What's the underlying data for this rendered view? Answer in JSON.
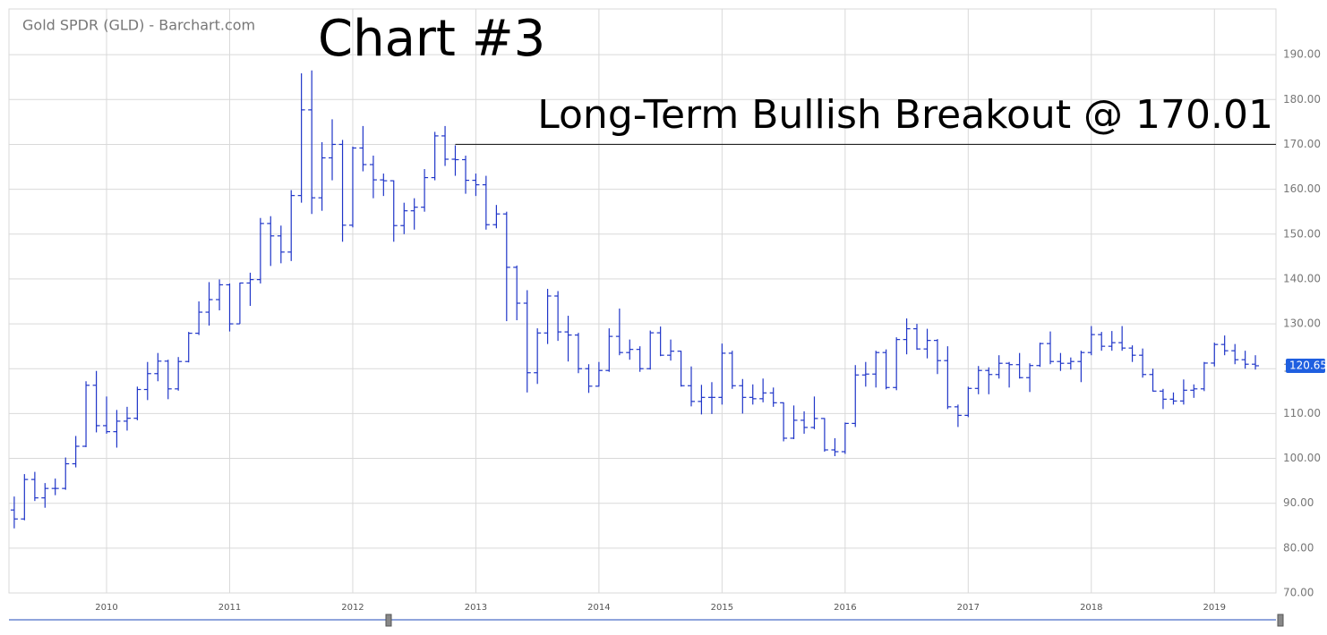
{
  "chart_data": {
    "type": "ohlc",
    "source_title": "Gold SPDR (GLD) - Barchart.com",
    "title": "Chart #3",
    "annotation": "Long-Term Bullish Breakout @ 170.01",
    "breakout_level": 170.01,
    "breakout_start": 2012.833,
    "color": "#1f35c8",
    "last_price_color": "#1f5fe0",
    "grid": true,
    "x": [
      2009.25,
      2009.333,
      2009.417,
      2009.5,
      2009.583,
      2009.667,
      2009.75,
      2009.833,
      2009.917,
      2010,
      2010.083,
      2010.167,
      2010.25,
      2010.333,
      2010.417,
      2010.5,
      2010.583,
      2010.667,
      2010.75,
      2010.833,
      2010.917,
      2011,
      2011.083,
      2011.167,
      2011.25,
      2011.333,
      2011.417,
      2011.5,
      2011.583,
      2011.667,
      2011.75,
      2011.833,
      2011.917,
      2012,
      2012.083,
      2012.167,
      2012.25,
      2012.333,
      2012.417,
      2012.5,
      2012.583,
      2012.667,
      2012.75,
      2012.833,
      2012.917,
      2013,
      2013.083,
      2013.167,
      2013.25,
      2013.333,
      2013.417,
      2013.5,
      2013.583,
      2013.667,
      2013.75,
      2013.833,
      2013.917,
      2014,
      2014.083,
      2014.167,
      2014.25,
      2014.333,
      2014.417,
      2014.5,
      2014.583,
      2014.667,
      2014.75,
      2014.833,
      2014.917,
      2015,
      2015.083,
      2015.167,
      2015.25,
      2015.333,
      2015.417,
      2015.5,
      2015.583,
      2015.667,
      2015.75,
      2015.833,
      2015.917,
      2016,
      2016.083,
      2016.167,
      2016.25,
      2016.333,
      2016.417,
      2016.5,
      2016.583,
      2016.667,
      2016.75,
      2016.833,
      2016.917,
      2017,
      2017.083,
      2017.167,
      2017.25,
      2017.333,
      2017.417,
      2017.5,
      2017.583,
      2017.667,
      2017.75,
      2017.833,
      2017.917,
      2018,
      2018.083,
      2018.167,
      2018.25,
      2018.333,
      2018.417,
      2018.5,
      2018.583,
      2018.667,
      2018.75,
      2018.833,
      2018.917,
      2019,
      2019.083,
      2019.167,
      2019.25,
      2019.333
    ],
    "open": [
      88.5,
      86.5,
      95.3,
      91.2,
      93.3,
      93.3,
      98.8,
      102.7,
      116.3,
      107.3,
      105.96,
      108.3,
      108.95,
      115.36,
      118.9,
      121.68,
      115.5,
      121.6,
      127.9,
      132.6,
      135.4,
      138.7,
      130.0,
      139.1,
      139.86,
      152.37,
      149.6,
      146.0,
      158.6,
      177.7,
      158.1,
      167.0,
      170.0,
      151.99,
      169.2,
      165.5,
      162.1,
      161.9,
      151.9,
      155.2,
      156.0,
      162.6,
      171.9,
      166.7,
      166.6,
      162.0,
      161.0,
      152.1,
      154.5,
      142.6,
      134.6,
      119.1,
      127.96,
      136.2,
      128.2,
      127.5,
      120.0,
      116.1,
      119.6,
      127.2,
      123.6,
      124.3,
      120.0,
      128.0,
      123.0,
      123.9,
      116.2,
      112.7,
      113.6,
      113.6,
      123.45,
      116.2,
      113.6,
      113.3,
      114.6,
      112.4,
      104.5,
      108.5,
      106.9,
      108.9,
      101.9,
      101.5,
      107.8,
      118.6,
      118.8,
      123.6,
      115.8,
      126.5,
      128.9,
      124.4,
      126.3,
      121.8,
      111.5,
      109.6,
      115.6,
      119.6,
      118.7,
      121.2,
      120.9,
      118.0,
      120.7,
      125.6,
      121.6,
      121.2,
      121.6,
      123.6,
      127.6,
      125.0,
      125.8,
      124.6,
      123.0,
      118.7,
      115.0,
      113.2,
      112.8,
      115.2,
      115.5,
      121.25,
      125.4,
      124.0,
      122.0,
      121.0
    ],
    "high": [
      91.5,
      96.5,
      97.0,
      94.5,
      95.5,
      100.2,
      105.0,
      117.2,
      119.5,
      113.8,
      110.8,
      111.5,
      116.0,
      121.5,
      123.5,
      122.0,
      122.6,
      128.2,
      135.0,
      139.3,
      139.9,
      139.0,
      139.2,
      141.4,
      153.6,
      154.0,
      151.9,
      159.8,
      185.85,
      186.5,
      170.5,
      175.6,
      171.0,
      169.5,
      174.1,
      167.5,
      163.5,
      162.0,
      157.0,
      158.0,
      164.5,
      172.8,
      174.1,
      169.8,
      167.5,
      163.5,
      163.0,
      156.5,
      155.0,
      143.0,
      137.5,
      129.0,
      137.8,
      137.3,
      131.8,
      128.0,
      121.0,
      121.5,
      129.0,
      133.4,
      126.5,
      125.0,
      128.5,
      129.4,
      126.5,
      124.0,
      120.5,
      116.4,
      117.0,
      125.6,
      124.0,
      117.7,
      116.5,
      117.8,
      115.8,
      112.5,
      111.8,
      110.5,
      113.8,
      109.0,
      104.5,
      108.0,
      120.8,
      121.5,
      124.0,
      124.3,
      127.0,
      131.2,
      130.0,
      128.9,
      126.6,
      125.0,
      112.0,
      116.0,
      120.6,
      120.3,
      123.0,
      121.5,
      123.5,
      121.2,
      125.8,
      128.3,
      123.5,
      122.5,
      124.0,
      129.5,
      128.2,
      128.4,
      129.5,
      125.2,
      124.5,
      120.0,
      115.5,
      114.7,
      117.6,
      116.5,
      121.5,
      125.8,
      127.4,
      125.5,
      124.0,
      123.0
    ],
    "low": [
      84.4,
      86.2,
      90.5,
      89.0,
      91.8,
      93.0,
      98.0,
      102.5,
      105.8,
      105.5,
      102.4,
      106.2,
      108.5,
      113.0,
      117.2,
      113.2,
      115.1,
      121.4,
      127.5,
      129.6,
      133.0,
      128.3,
      130.0,
      134.0,
      139.0,
      142.9,
      143.5,
      144.0,
      157.0,
      154.5,
      155.2,
      162.0,
      148.3,
      151.5,
      164.0,
      158.0,
      158.5,
      148.3,
      150.0,
      151.0,
      155.0,
      162.0,
      165.2,
      163.0,
      159.0,
      158.5,
      151.0,
      151.3,
      130.6,
      130.8,
      114.7,
      116.6,
      125.5,
      126.2,
      121.6,
      119.0,
      114.6,
      116.0,
      119.3,
      123.0,
      122.0,
      119.3,
      119.8,
      122.8,
      121.8,
      116.0,
      111.6,
      109.8,
      109.9,
      112.0,
      115.5,
      110.0,
      112.0,
      112.5,
      111.5,
      103.8,
      104.3,
      105.5,
      106.5,
      101.5,
      100.5,
      101.0,
      107.0,
      116.0,
      115.8,
      115.4,
      115.2,
      123.2,
      124.2,
      122.3,
      118.8,
      111.0,
      107.0,
      109.2,
      114.3,
      114.3,
      117.8,
      115.8,
      117.8,
      114.8,
      120.4,
      121.0,
      119.5,
      119.8,
      117.0,
      123.0,
      124.0,
      124.0,
      124.0,
      121.5,
      118.0,
      114.9,
      111.0,
      112.0,
      112.0,
      113.5,
      115.0,
      120.5,
      123.0,
      121.0,
      120.0,
      119.8
    ],
    "close": [
      86.5,
      95.3,
      91.2,
      93.3,
      93.3,
      98.8,
      102.7,
      116.3,
      107.3,
      105.96,
      108.3,
      108.95,
      115.36,
      118.9,
      121.68,
      115.5,
      121.6,
      127.9,
      132.6,
      135.4,
      138.7,
      130.0,
      139.1,
      139.86,
      152.37,
      149.6,
      146.0,
      158.6,
      177.7,
      158.1,
      167.0,
      170.0,
      151.99,
      169.2,
      165.5,
      162.1,
      161.9,
      151.9,
      155.2,
      156.0,
      162.6,
      171.9,
      166.7,
      166.6,
      162.0,
      161.0,
      152.1,
      154.5,
      142.6,
      134.6,
      119.1,
      127.96,
      136.2,
      128.2,
      127.5,
      120.0,
      116.1,
      119.6,
      127.2,
      123.6,
      124.3,
      120.0,
      128.0,
      123.0,
      123.9,
      116.2,
      112.7,
      113.6,
      113.6,
      123.45,
      116.2,
      113.6,
      113.3,
      114.6,
      112.4,
      104.5,
      108.5,
      106.9,
      108.9,
      101.9,
      101.5,
      107.8,
      118.6,
      118.8,
      123.6,
      115.8,
      126.5,
      128.9,
      124.4,
      126.3,
      121.8,
      111.5,
      109.6,
      115.6,
      119.6,
      118.7,
      121.2,
      120.9,
      118.0,
      120.7,
      125.6,
      121.6,
      121.2,
      121.6,
      123.6,
      127.6,
      125.0,
      125.8,
      124.6,
      123.0,
      118.7,
      115.0,
      113.2,
      112.8,
      115.2,
      115.5,
      121.25,
      125.4,
      124.0,
      122.0,
      121.0,
      120.65
    ],
    "xlim": [
      2009.207,
      2019.5
    ],
    "xticks": [
      2010,
      2011,
      2012,
      2013,
      2014,
      2015,
      2016,
      2017,
      2018,
      2019
    ],
    "ylim": [
      70,
      200.2
    ],
    "yticks": [
      {
        "value": 70,
        "label": "70.00"
      },
      {
        "value": 80,
        "label": "80.00"
      },
      {
        "value": 90,
        "label": "90.00"
      },
      {
        "value": 100,
        "label": "100.00"
      },
      {
        "value": 110,
        "label": "110.00"
      },
      {
        "value": 120,
        "label": "120.00"
      },
      {
        "value": 130,
        "label": "130.00"
      },
      {
        "value": 140,
        "label": "140.00"
      },
      {
        "value": 150,
        "label": "150.00"
      },
      {
        "value": 160,
        "label": "160.00"
      },
      {
        "value": 170,
        "label": "170.00"
      },
      {
        "value": 180,
        "label": "180.00"
      },
      {
        "value": 190,
        "label": "190.00"
      }
    ]
  }
}
